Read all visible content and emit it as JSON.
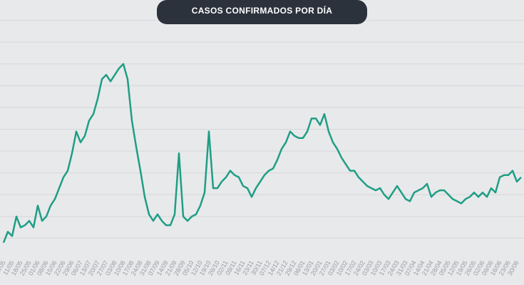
{
  "chart_data": {
    "type": "line",
    "title": "CASOS CONFIRMADOS POR DÍA",
    "categories": [
      "04/05",
      null,
      "11/05",
      null,
      "18/05",
      null,
      "25/05",
      null,
      "01/06",
      null,
      "08/06",
      null,
      "15/06",
      null,
      "22/06",
      null,
      "29/06",
      null,
      "06/07",
      null,
      "13/07",
      null,
      "20/07",
      null,
      "27/07",
      null,
      "03/08",
      null,
      "10/08",
      null,
      "17/08",
      null,
      "24/08",
      null,
      "31/08",
      null,
      "07/09",
      null,
      "14/09",
      null,
      "21/09",
      null,
      "28/09",
      null,
      "05/10",
      null,
      "12/10",
      null,
      "19/10",
      null,
      "26/10",
      null,
      "02/11",
      null,
      "09/11",
      null,
      "16/11",
      null,
      "23/11",
      null,
      "30/11",
      null,
      "07/12",
      null,
      "14/12",
      null,
      "21/12",
      null,
      "29/12",
      null,
      "06/01",
      null,
      "13/01",
      null,
      "20/01",
      null,
      "27/01",
      null,
      "03/02",
      null,
      "10/02",
      null,
      "17/02",
      null,
      "24/02",
      null,
      "03/03",
      null,
      "10/03",
      null,
      "17/03",
      null,
      "24/03",
      null,
      "31/03",
      null,
      "07/04",
      null,
      "14/04",
      null,
      "21/04",
      null,
      "28/04",
      null,
      "05/05",
      null,
      "12/05",
      null,
      "19/05",
      null,
      "26/05",
      null,
      "02/06",
      null,
      "09/06",
      null,
      "16/06",
      null,
      "23/06",
      null,
      "30/06",
      null
    ],
    "series": [
      {
        "color": "#1f9e85",
        "values": [
          0.8,
          1.3,
          1.1,
          2.0,
          1.5,
          1.6,
          1.8,
          1.5,
          2.5,
          1.8,
          2.0,
          2.5,
          2.8,
          3.3,
          3.8,
          4.1,
          4.9,
          5.9,
          5.4,
          5.7,
          6.4,
          6.7,
          7.4,
          8.3,
          8.5,
          8.2,
          8.5,
          8.8,
          9.0,
          8.3,
          6.4,
          5.2,
          4.1,
          2.9,
          2.1,
          1.8,
          2.1,
          1.8,
          1.6,
          1.6,
          2.1,
          4.9,
          2.0,
          1.8,
          2.0,
          2.1,
          2.5,
          3.1,
          5.9,
          3.3,
          3.3,
          3.6,
          3.8,
          4.1,
          3.9,
          3.8,
          3.4,
          3.3,
          2.9,
          3.3,
          3.6,
          3.9,
          4.1,
          4.2,
          4.6,
          5.1,
          5.4,
          5.9,
          5.7,
          5.6,
          5.6,
          5.9,
          6.5,
          6.5,
          6.2,
          6.7,
          5.9,
          5.4,
          5.1,
          4.7,
          4.4,
          4.1,
          4.1,
          3.8,
          3.6,
          3.4,
          3.3,
          3.2,
          3.3,
          3.0,
          2.8,
          3.1,
          3.4,
          3.1,
          2.8,
          2.7,
          3.1,
          3.2,
          3.3,
          3.5,
          2.9,
          3.1,
          3.2,
          3.2,
          3.0,
          2.8,
          2.7,
          2.6,
          2.8,
          2.9,
          3.1,
          2.9,
          3.1,
          2.9,
          3.3,
          3.1,
          3.8,
          3.9,
          3.9,
          4.1,
          3.6,
          3.8
        ]
      }
    ],
    "ylim": [
      0,
      12
    ],
    "yticks": [
      1,
      2,
      3,
      4,
      5,
      6,
      7,
      8,
      9,
      10,
      11
    ],
    "grid": true
  }
}
